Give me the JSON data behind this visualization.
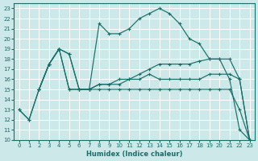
{
  "xlabel": "Humidex (Indice chaleur)",
  "bg_color": "#cce8e8",
  "grid_color": "#ffffff",
  "line_color": "#1a6e6a",
  "xlim": [
    -0.5,
    23.5
  ],
  "ylim": [
    10,
    23.5
  ],
  "xticks": [
    0,
    1,
    2,
    3,
    4,
    5,
    6,
    7,
    8,
    9,
    10,
    11,
    12,
    13,
    14,
    15,
    16,
    17,
    18,
    19,
    20,
    21,
    22,
    23
  ],
  "yticks": [
    10,
    11,
    12,
    13,
    14,
    15,
    16,
    17,
    18,
    19,
    20,
    21,
    22,
    23
  ],
  "line1_x": [
    0,
    1,
    2,
    3,
    4,
    5,
    6,
    7,
    8,
    9,
    10,
    11,
    12,
    13,
    14,
    15,
    16,
    17,
    18,
    19,
    20,
    21,
    22,
    23
  ],
  "line1_y": [
    13,
    12,
    15,
    17.5,
    19,
    18.5,
    15,
    15,
    21.5,
    20.5,
    20.5,
    21,
    22,
    22.5,
    23,
    22.5,
    21.5,
    20,
    19.5,
    18,
    18,
    16,
    11,
    10
  ],
  "line2_x": [
    2,
    3,
    4,
    5,
    6,
    7,
    8,
    9,
    10,
    11,
    12,
    13,
    14,
    15,
    16,
    17,
    18,
    19,
    20,
    21,
    22,
    23
  ],
  "line2_y": [
    15,
    17.5,
    19,
    18.5,
    15,
    15,
    15.5,
    15.5,
    16,
    16,
    16.5,
    17,
    17.5,
    17.5,
    17.5,
    17.5,
    17.8,
    18,
    18,
    18,
    16,
    10
  ],
  "line3_x": [
    2,
    3,
    4,
    5,
    6,
    7,
    8,
    9,
    10,
    11,
    12,
    13,
    14,
    15,
    16,
    17,
    18,
    19,
    20,
    21,
    22,
    23
  ],
  "line3_y": [
    15,
    17.5,
    19,
    15,
    15,
    15,
    15.5,
    15.5,
    15.5,
    16,
    16,
    16.5,
    16,
    16,
    16,
    16,
    16,
    16.5,
    16.5,
    16.5,
    16,
    10
  ],
  "line4_x": [
    0,
    1,
    2,
    3,
    4,
    5,
    6,
    7,
    8,
    9,
    10,
    11,
    12,
    13,
    14,
    15,
    16,
    17,
    18,
    19,
    20,
    21,
    22,
    23
  ],
  "line4_y": [
    13,
    12,
    15,
    17.5,
    19,
    15,
    15,
    15,
    15,
    15,
    15,
    15,
    15,
    15,
    15,
    15,
    15,
    15,
    15,
    15,
    15,
    15,
    13,
    10
  ]
}
